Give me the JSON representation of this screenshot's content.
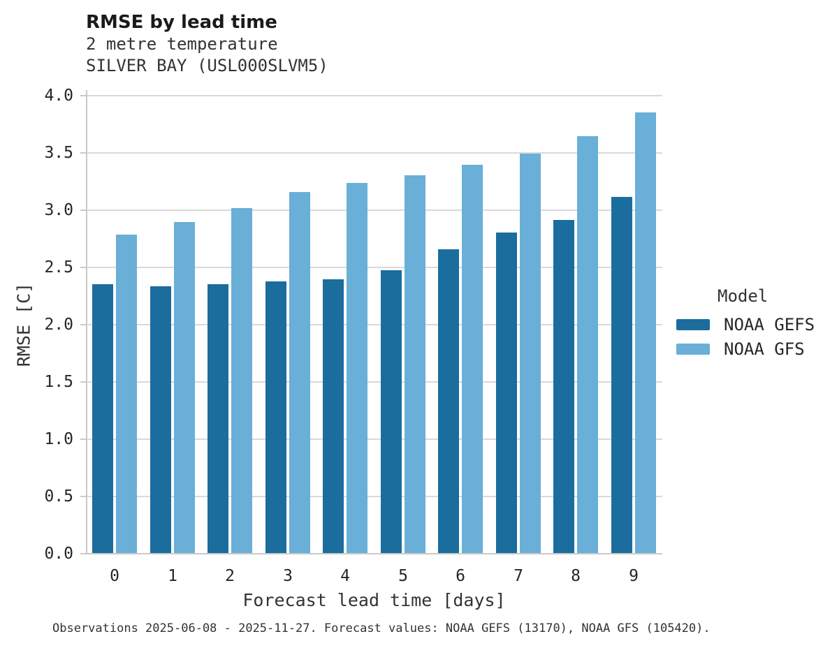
{
  "chart_data": {
    "type": "bar",
    "title": "RMSE by lead time",
    "subtitle_lines": [
      "2 metre temperature",
      "SILVER BAY (USL000SLVM5)"
    ],
    "categories": [
      "0",
      "1",
      "2",
      "3",
      "4",
      "5",
      "6",
      "7",
      "8",
      "9"
    ],
    "series": [
      {
        "name": "NOAA GEFS",
        "color": "#1a6d9d",
        "values": [
          2.35,
          2.33,
          2.35,
          2.37,
          2.39,
          2.47,
          2.65,
          2.8,
          2.91,
          3.11
        ]
      },
      {
        "name": "NOAA GFS",
        "color": "#69afd7",
        "values": [
          2.78,
          2.89,
          3.01,
          3.15,
          3.23,
          3.3,
          3.39,
          3.49,
          3.64,
          3.85
        ]
      }
    ],
    "xlabel": "Forecast lead time [days]",
    "ylabel": "RMSE [C]",
    "ylim": [
      0.0,
      4.0
    ],
    "ytick_step": 0.5,
    "ytick_labels": [
      "0.0",
      "0.5",
      "1.0",
      "1.5",
      "2.0",
      "2.5",
      "3.0",
      "3.5",
      "4.0"
    ],
    "grid": true,
    "legend_title": "Model",
    "legend_position": "right",
    "colors": {
      "grid": "#d9d9d9",
      "spine": "#c9c9c9",
      "tick_text": "#262626",
      "label_text": "#333333"
    }
  },
  "footer": {
    "text": "Observations 2025-06-08 - 2025-11-27. Forecast values: NOAA GEFS (13170), NOAA GFS (105420)."
  }
}
